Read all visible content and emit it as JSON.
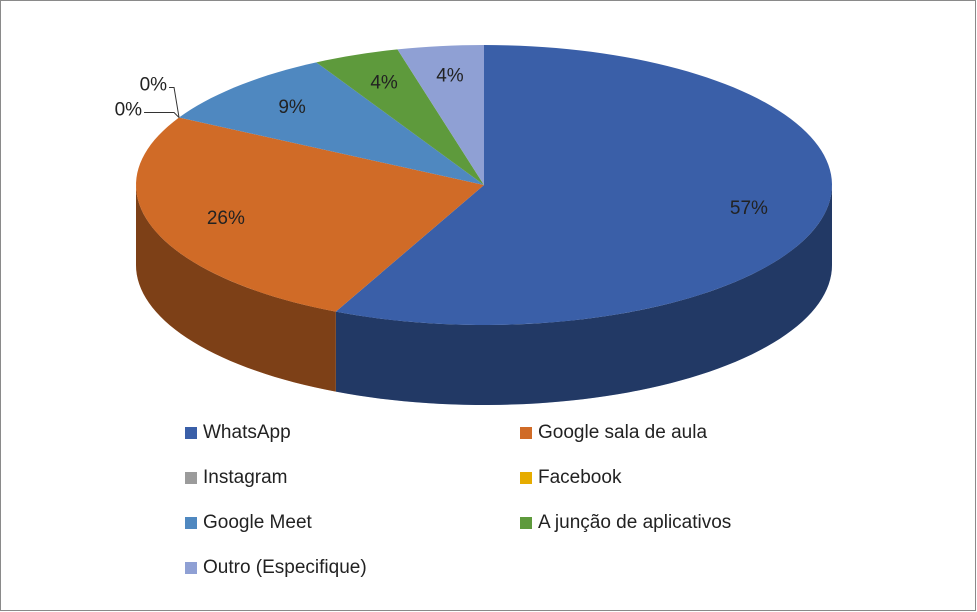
{
  "chart_data": {
    "type": "pie",
    "categories": [
      "WhatsApp",
      "Google sala de aula",
      "Instagram",
      "Facebook",
      "Google Meet",
      "A junção de aplicativos",
      "Outro (Especifique)"
    ],
    "values": [
      57,
      26,
      0,
      0,
      9,
      4,
      4
    ],
    "value_labels": [
      "57%",
      "26%",
      "0%",
      "0%",
      "9%",
      "4%",
      "4%"
    ],
    "colors": [
      "#3a5fa8",
      "#d06b27",
      "#9b9b9b",
      "#e6ac00",
      "#4f88c0",
      "#5e9a3c",
      "#8fa0d4"
    ],
    "legend": "bottom"
  }
}
